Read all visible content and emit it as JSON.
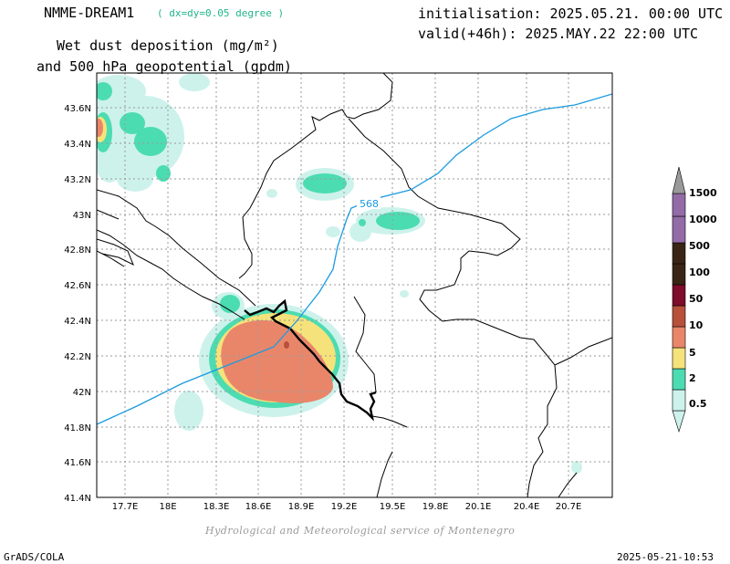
{
  "header": {
    "model": "NMME-DREAM1",
    "resolution": "( dx=dy=0.05 degree )",
    "title_line1": "Wet dust deposition (mg/m²)",
    "title_line2": "and 500 hPa geopotential (gpdm)",
    "init": "initialisation: 2025.05.21. 00:00 UTC",
    "valid": "valid(+46h): 2025.MAY.22 22:00 UTC"
  },
  "map": {
    "lon_labels": [
      "17.7E",
      "18E",
      "18.3E",
      "18.6E",
      "18.9E",
      "19.2E",
      "19.5E",
      "19.8E",
      "20.1E",
      "20.4E",
      "20.7E"
    ],
    "lat_labels": [
      "43.6N",
      "43.4N",
      "43.2N",
      "43N",
      "42.8N",
      "42.6N",
      "42.4N",
      "42.2N",
      "42N",
      "41.8N",
      "41.6N",
      "41.4N"
    ],
    "contour_label": "568",
    "contour_color": "#1a9be0"
  },
  "legend": {
    "levels": [
      "0.5",
      "2",
      "5",
      "10",
      "50",
      "100",
      "500",
      "1000",
      "1500"
    ],
    "colors": [
      "#cdf2ec",
      "#4cdcb2",
      "#f6e27a",
      "#e9866a",
      "#b8503c",
      "#7e0c2a",
      "#3a2416",
      "#936ba7",
      "#9a9a9a"
    ]
  },
  "footer": {
    "credit": "Hydrological and Meteorological service of Montenegro",
    "left": "GrADS/COLA",
    "right": "2025-05-21-10:53"
  }
}
